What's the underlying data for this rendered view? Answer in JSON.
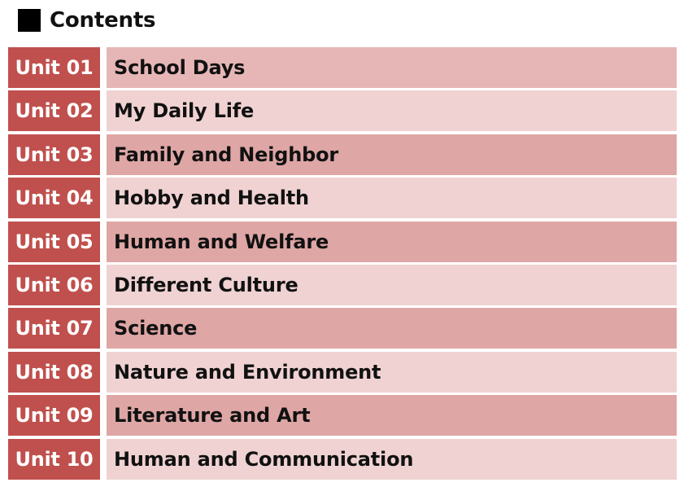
{
  "header": {
    "title": "Contents",
    "icon": "black-square-icon"
  },
  "colors": {
    "unit_label_bg": "#c0504d",
    "row_dark_bg": "#dea6a5",
    "row_light_bg": "#f0d2d2",
    "row_first_bg": "#e6b6b6"
  },
  "units": [
    {
      "label": "Unit 01",
      "title": "School Days"
    },
    {
      "label": "Unit 02",
      "title": "My Daily Life"
    },
    {
      "label": "Unit 03",
      "title": "Family and Neighbor"
    },
    {
      "label": "Unit 04",
      "title": "Hobby and Health"
    },
    {
      "label": "Unit 05",
      "title": "Human and Welfare"
    },
    {
      "label": "Unit 06",
      "title": "Different Culture"
    },
    {
      "label": "Unit 07",
      "title": "Science"
    },
    {
      "label": "Unit 08",
      "title": "Nature and Environment"
    },
    {
      "label": "Unit 09",
      "title": "Literature and Art"
    },
    {
      "label": "Unit 10",
      "title": "Human and Communication"
    }
  ]
}
